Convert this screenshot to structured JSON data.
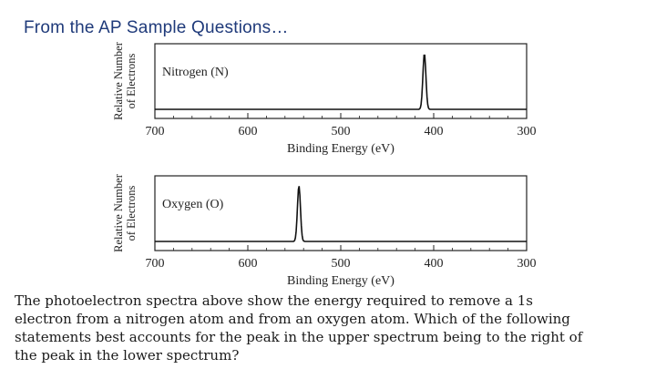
{
  "slide": {
    "title": "From the AP Sample Questions…"
  },
  "chart_data": [
    {
      "type": "line",
      "title": "",
      "series_label": "Nitrogen (N)",
      "xlabel": "Binding Energy (eV)",
      "ylabel_lines": [
        "Relative Number",
        "of Electrons"
      ],
      "xlim": [
        700,
        300
      ],
      "x_reversed": true,
      "xticks": [
        700,
        600,
        500,
        400,
        300
      ],
      "grid": false,
      "peaks": [
        {
          "x": 410,
          "relative_height": 0.85
        }
      ]
    },
    {
      "type": "line",
      "title": "",
      "series_label": "Oxygen (O)",
      "xlabel": "Binding Energy (eV)",
      "ylabel_lines": [
        "Relative Number",
        "of Electrons"
      ],
      "xlim": [
        700,
        300
      ],
      "x_reversed": true,
      "xticks": [
        700,
        600,
        500,
        400,
        300
      ],
      "grid": false,
      "peaks": [
        {
          "x": 545,
          "relative_height": 0.85
        }
      ]
    }
  ],
  "question": {
    "lines": [
      "The photoelectron spectra above show the energy required to remove a 1s",
      "electron from a nitrogen atom and from an oxygen atom. Which of the following",
      "statements best accounts for the peak in the upper spectrum being to the right of",
      "the peak in the lower spectrum?"
    ]
  }
}
